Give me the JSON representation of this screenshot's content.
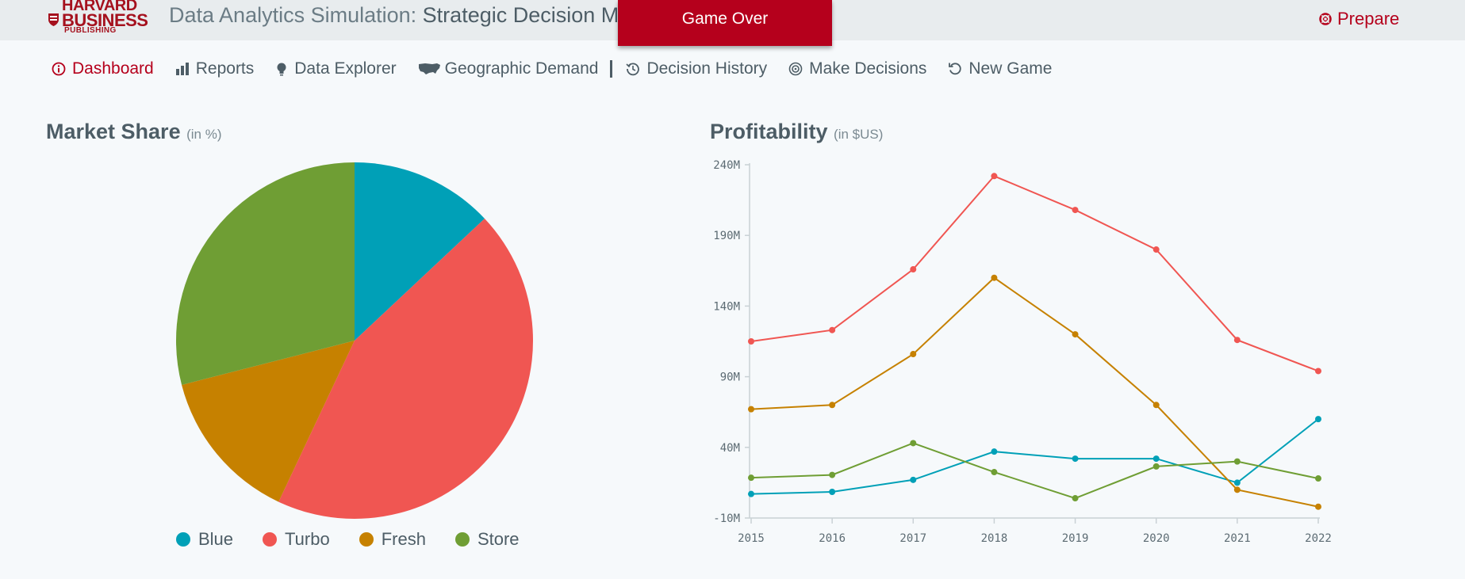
{
  "header": {
    "logo": {
      "line1": "HARVARD",
      "line2": "BUSINESS",
      "line3": "PUBLISHING"
    },
    "app_title_prefix": "Data Analytics Simulation:",
    "app_title_main": "Strategic Decision Ma",
    "game_over": "Game Over",
    "prepare_label": "Prepare"
  },
  "nav": {
    "dashboard": "Dashboard",
    "reports": "Reports",
    "data_explorer": "Data Explorer",
    "geographic_demand": "Geographic Demand",
    "decision_history": "Decision History",
    "make_decisions": "Make Decisions",
    "new_game": "New Game"
  },
  "colors": {
    "accent": "#b5001c",
    "blue": "#00a0b7",
    "turbo": "#f05652",
    "fresh": "#c68100",
    "store": "#6f9e34"
  },
  "chart_data": [
    {
      "type": "pie",
      "title": "Market Share",
      "unit": "(in %)",
      "slices": [
        {
          "name": "Blue",
          "value": 13,
          "color": "#00a0b7"
        },
        {
          "name": "Turbo",
          "value": 44,
          "color": "#f05652"
        },
        {
          "name": "Fresh",
          "value": 14,
          "color": "#c68100"
        },
        {
          "name": "Store",
          "value": 29,
          "color": "#6f9e34"
        }
      ],
      "legend": "bottom"
    },
    {
      "type": "line",
      "title": "Profitability",
      "unit": "(in $US)",
      "x": [
        "2015",
        "2016",
        "2017",
        "2018",
        "2019",
        "2020",
        "2021",
        "2022"
      ],
      "yticks": [
        "-10M",
        "40M",
        "90M",
        "140M",
        "190M",
        "240M"
      ],
      "ylim": [
        -10,
        240
      ],
      "series": [
        {
          "name": "Blue",
          "color": "#00a0b7",
          "values": [
            7,
            8.5,
            17,
            37,
            32,
            32,
            15,
            60
          ]
        },
        {
          "name": "Turbo",
          "color": "#f05652",
          "values": [
            115,
            123,
            166,
            232,
            208,
            180,
            116,
            94
          ]
        },
        {
          "name": "Fresh",
          "color": "#c68100",
          "values": [
            67,
            70,
            106,
            160,
            120,
            70,
            10,
            -2
          ]
        },
        {
          "name": "Store",
          "color": "#6f9e34",
          "values": [
            18.5,
            20.5,
            43,
            22.5,
            4,
            26.5,
            30,
            18
          ]
        }
      ]
    }
  ]
}
